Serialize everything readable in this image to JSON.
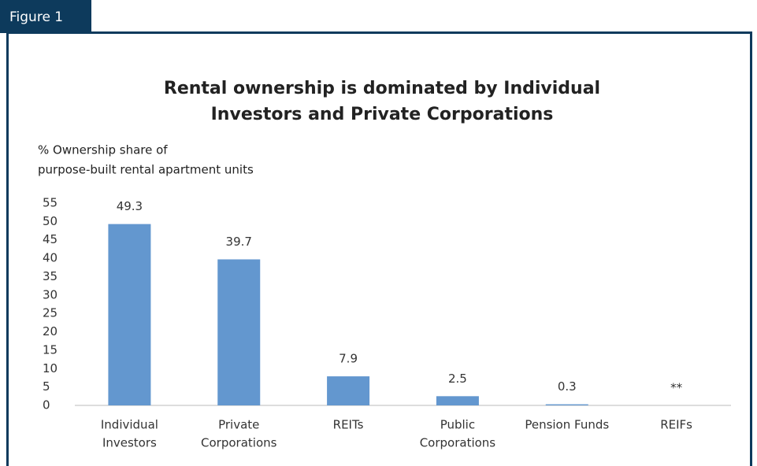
{
  "figure_label": "Figure 1",
  "chart_data": {
    "type": "bar",
    "title": [
      "Rental ownership is dominated by Individual",
      "Investors and Private Corporations"
    ],
    "y_label": [
      "% Ownership share of",
      "purpose-built rental apartment units"
    ],
    "categories": [
      [
        "Individual",
        "Investors"
      ],
      [
        "Private",
        "Corporations"
      ],
      [
        "REITs"
      ],
      [
        "Public",
        "Corporations"
      ],
      [
        "Pension Funds"
      ],
      [
        "REIFs"
      ]
    ],
    "values": [
      49.3,
      39.7,
      7.9,
      2.5,
      0.3,
      null
    ],
    "value_labels": [
      "49.3",
      "39.7",
      "7.9",
      "2.5",
      "0.3",
      "**"
    ],
    "color": "#6397cf",
    "ylim": [
      0,
      55
    ],
    "yticks": [
      0,
      5,
      10,
      15,
      20,
      25,
      30,
      35,
      40,
      45,
      50,
      55
    ],
    "grid": false
  }
}
